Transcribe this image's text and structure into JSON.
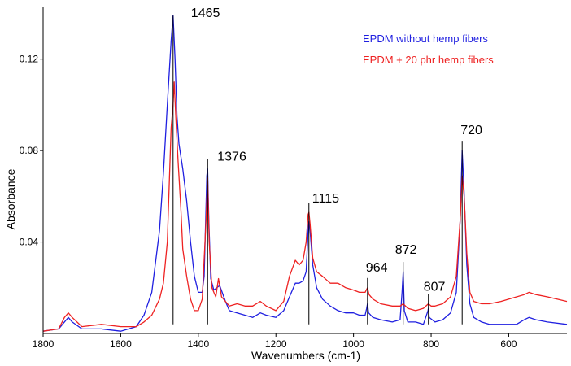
{
  "chart_data": {
    "type": "line",
    "xlabel": "Wavenumbers (cm-1)",
    "ylabel": "Absorbance",
    "xlim": [
      1800,
      450
    ],
    "ylim": [
      0,
      0.143
    ],
    "x_reversed": true,
    "x_ticks": [
      1800,
      1600,
      1400,
      1200,
      1000,
      800,
      600
    ],
    "x_tick_labels": [
      "1800",
      "1600",
      "1400",
      "1200",
      "1000",
      "800",
      "600"
    ],
    "y_ticks": [
      0.04,
      0.08,
      0.12
    ],
    "y_tick_labels": [
      "0.04",
      "0.08",
      "0.12"
    ],
    "grid": false,
    "legend_position": "top-right",
    "series": [
      {
        "name": "EPDM  without  hemp fibers",
        "color": "#1f1fe0",
        "points": [
          [
            1800,
            0.001
          ],
          [
            1760,
            0.002
          ],
          [
            1745,
            0.005
          ],
          [
            1735,
            0.007
          ],
          [
            1725,
            0.005
          ],
          [
            1700,
            0.002
          ],
          [
            1650,
            0.002
          ],
          [
            1600,
            0.001
          ],
          [
            1560,
            0.003
          ],
          [
            1540,
            0.008
          ],
          [
            1520,
            0.018
          ],
          [
            1500,
            0.045
          ],
          [
            1490,
            0.07
          ],
          [
            1480,
            0.1
          ],
          [
            1470,
            0.128
          ],
          [
            1465,
            0.139
          ],
          [
            1460,
            0.12
          ],
          [
            1455,
            0.095
          ],
          [
            1450,
            0.083
          ],
          [
            1440,
            0.072
          ],
          [
            1430,
            0.058
          ],
          [
            1420,
            0.04
          ],
          [
            1410,
            0.025
          ],
          [
            1400,
            0.018
          ],
          [
            1390,
            0.018
          ],
          [
            1385,
            0.025
          ],
          [
            1378,
            0.069
          ],
          [
            1376,
            0.072
          ],
          [
            1373,
            0.05
          ],
          [
            1368,
            0.024
          ],
          [
            1360,
            0.019
          ],
          [
            1345,
            0.021
          ],
          [
            1330,
            0.014
          ],
          [
            1320,
            0.01
          ],
          [
            1300,
            0.009
          ],
          [
            1280,
            0.008
          ],
          [
            1260,
            0.007
          ],
          [
            1240,
            0.009
          ],
          [
            1225,
            0.008
          ],
          [
            1200,
            0.007
          ],
          [
            1180,
            0.01
          ],
          [
            1165,
            0.016
          ],
          [
            1150,
            0.022
          ],
          [
            1140,
            0.022
          ],
          [
            1130,
            0.023
          ],
          [
            1122,
            0.027
          ],
          [
            1117,
            0.045
          ],
          [
            1115,
            0.049
          ],
          [
            1112,
            0.045
          ],
          [
            1105,
            0.03
          ],
          [
            1095,
            0.02
          ],
          [
            1080,
            0.015
          ],
          [
            1060,
            0.012
          ],
          [
            1040,
            0.01
          ],
          [
            1020,
            0.009
          ],
          [
            1000,
            0.009
          ],
          [
            985,
            0.008
          ],
          [
            970,
            0.008
          ],
          [
            966,
            0.011
          ],
          [
            964,
            0.013
          ],
          [
            961,
            0.009
          ],
          [
            950,
            0.007
          ],
          [
            930,
            0.006
          ],
          [
            900,
            0.005
          ],
          [
            880,
            0.006
          ],
          [
            875,
            0.018
          ],
          [
            872,
            0.027
          ],
          [
            869,
            0.01
          ],
          [
            860,
            0.005
          ],
          [
            840,
            0.005
          ],
          [
            820,
            0.004
          ],
          [
            808,
            0.01
          ],
          [
            807,
            0.011
          ],
          [
            805,
            0.007
          ],
          [
            790,
            0.005
          ],
          [
            770,
            0.006
          ],
          [
            750,
            0.009
          ],
          [
            735,
            0.018
          ],
          [
            725,
            0.05
          ],
          [
            720,
            0.08
          ],
          [
            715,
            0.062
          ],
          [
            708,
            0.03
          ],
          [
            700,
            0.013
          ],
          [
            690,
            0.007
          ],
          [
            670,
            0.005
          ],
          [
            650,
            0.004
          ],
          [
            620,
            0.004
          ],
          [
            580,
            0.004
          ],
          [
            560,
            0.006
          ],
          [
            548,
            0.007
          ],
          [
            530,
            0.006
          ],
          [
            500,
            0.005
          ],
          [
            450,
            0.004
          ]
        ]
      },
      {
        "name": "EPDM + 20 phr hemp fibers",
        "color": "#ee2222",
        "points": [
          [
            1800,
            0.001
          ],
          [
            1760,
            0.002
          ],
          [
            1745,
            0.007
          ],
          [
            1735,
            0.009
          ],
          [
            1725,
            0.007
          ],
          [
            1700,
            0.003
          ],
          [
            1650,
            0.004
          ],
          [
            1600,
            0.003
          ],
          [
            1560,
            0.003
          ],
          [
            1540,
            0.005
          ],
          [
            1520,
            0.008
          ],
          [
            1500,
            0.015
          ],
          [
            1490,
            0.022
          ],
          [
            1480,
            0.04
          ],
          [
            1470,
            0.09
          ],
          [
            1465,
            0.1
          ],
          [
            1462,
            0.11
          ],
          [
            1458,
            0.095
          ],
          [
            1452,
            0.075
          ],
          [
            1445,
            0.055
          ],
          [
            1440,
            0.037
          ],
          [
            1430,
            0.025
          ],
          [
            1420,
            0.015
          ],
          [
            1410,
            0.01
          ],
          [
            1400,
            0.01
          ],
          [
            1390,
            0.015
          ],
          [
            1380,
            0.05
          ],
          [
            1376,
            0.068
          ],
          [
            1372,
            0.04
          ],
          [
            1365,
            0.02
          ],
          [
            1355,
            0.016
          ],
          [
            1348,
            0.024
          ],
          [
            1340,
            0.016
          ],
          [
            1320,
            0.012
          ],
          [
            1300,
            0.013
          ],
          [
            1280,
            0.012
          ],
          [
            1260,
            0.012
          ],
          [
            1240,
            0.014
          ],
          [
            1225,
            0.012
          ],
          [
            1200,
            0.01
          ],
          [
            1180,
            0.014
          ],
          [
            1165,
            0.025
          ],
          [
            1150,
            0.032
          ],
          [
            1140,
            0.03
          ],
          [
            1130,
            0.032
          ],
          [
            1122,
            0.04
          ],
          [
            1117,
            0.052
          ],
          [
            1115,
            0.053
          ],
          [
            1112,
            0.048
          ],
          [
            1105,
            0.033
          ],
          [
            1095,
            0.027
          ],
          [
            1080,
            0.025
          ],
          [
            1060,
            0.022
          ],
          [
            1040,
            0.022
          ],
          [
            1020,
            0.02
          ],
          [
            1000,
            0.019
          ],
          [
            985,
            0.018
          ],
          [
            970,
            0.018
          ],
          [
            964,
            0.02
          ],
          [
            960,
            0.017
          ],
          [
            950,
            0.015
          ],
          [
            930,
            0.013
          ],
          [
            900,
            0.012
          ],
          [
            880,
            0.012
          ],
          [
            872,
            0.013
          ],
          [
            860,
            0.011
          ],
          [
            840,
            0.01
          ],
          [
            820,
            0.011
          ],
          [
            807,
            0.013
          ],
          [
            800,
            0.012
          ],
          [
            790,
            0.012
          ],
          [
            770,
            0.013
          ],
          [
            750,
            0.016
          ],
          [
            735,
            0.025
          ],
          [
            725,
            0.05
          ],
          [
            720,
            0.069
          ],
          [
            715,
            0.06
          ],
          [
            708,
            0.035
          ],
          [
            700,
            0.018
          ],
          [
            690,
            0.014
          ],
          [
            670,
            0.013
          ],
          [
            650,
            0.013
          ],
          [
            620,
            0.014
          ],
          [
            580,
            0.016
          ],
          [
            560,
            0.017
          ],
          [
            548,
            0.018
          ],
          [
            530,
            0.017
          ],
          [
            500,
            0.016
          ],
          [
            450,
            0.014
          ]
        ]
      }
    ],
    "annotations": [
      {
        "text": "1465",
        "x": 1465,
        "y_peak": 0.139
      },
      {
        "text": "1376",
        "x": 1376,
        "y_peak": 0.072
      },
      {
        "text": "1115",
        "x": 1115,
        "y_peak": 0.053
      },
      {
        "text": "964",
        "x": 964,
        "y_peak": 0.02
      },
      {
        "text": "872",
        "x": 872,
        "y_peak": 0.027
      },
      {
        "text": "807",
        "x": 807,
        "y_peak": 0.013
      },
      {
        "text": "720",
        "x": 720,
        "y_peak": 0.08
      }
    ]
  }
}
